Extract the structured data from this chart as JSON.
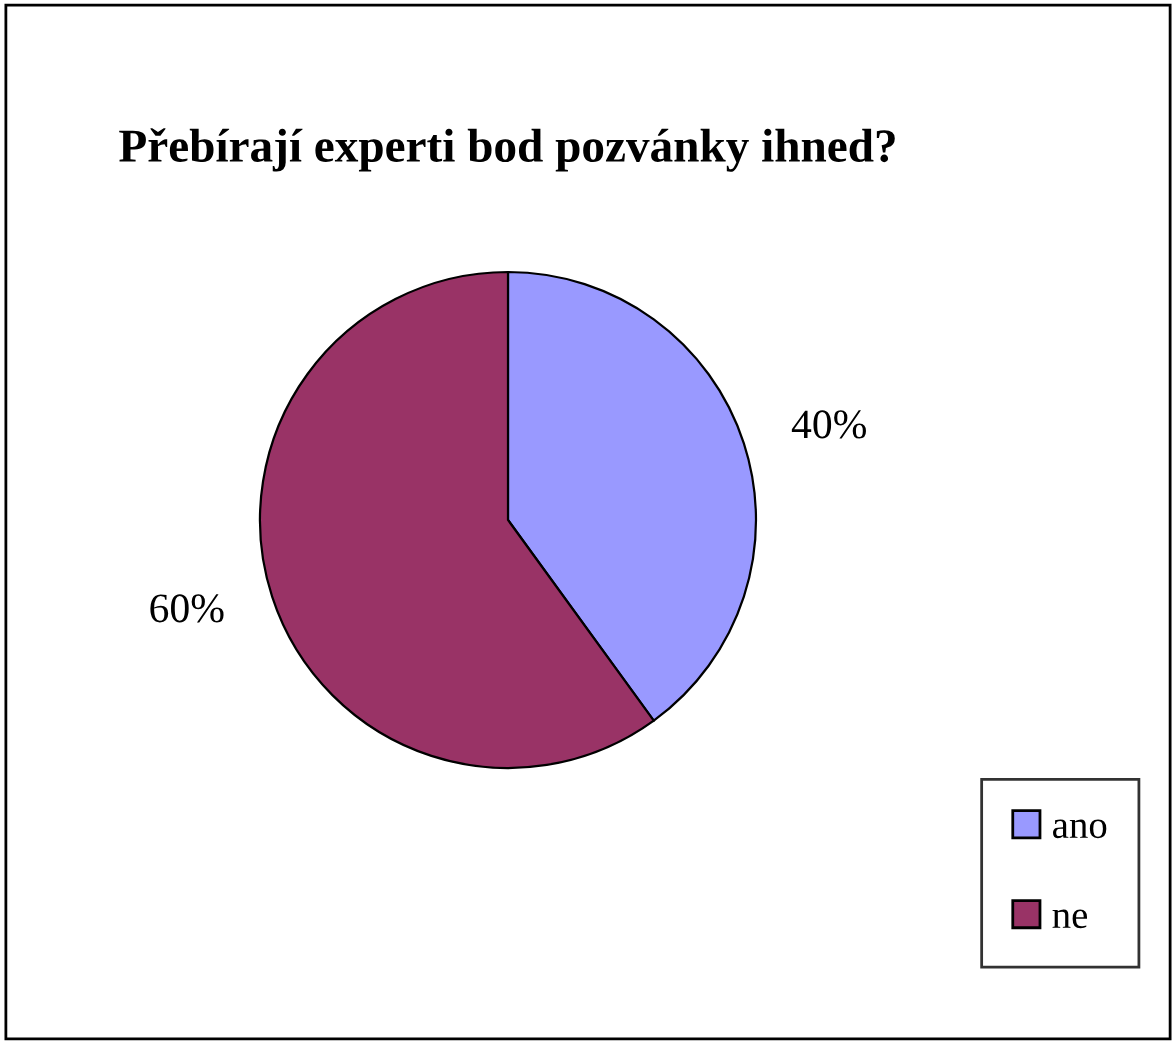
{
  "chart_data": {
    "type": "pie",
    "title": "Přebírají experti bod pozvánky ihned?",
    "categories": [
      "ano",
      "ne"
    ],
    "values": [
      40,
      60
    ],
    "colors": [
      "#9999ff",
      "#993366"
    ],
    "value_labels": [
      "40%",
      "60%"
    ],
    "legend": "bottom right"
  }
}
